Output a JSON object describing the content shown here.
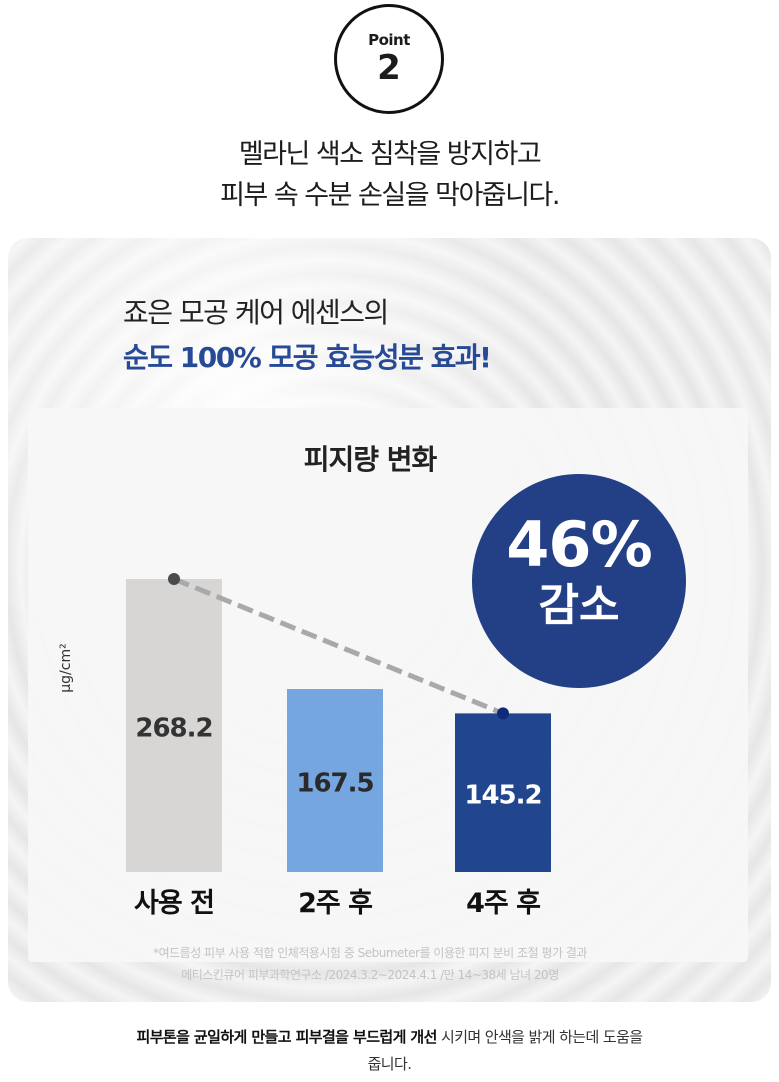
{
  "point": {
    "label": "Point",
    "number": "2"
  },
  "headline": {
    "line1": "멜라닌 색소 침착을 방지하고",
    "line2": "피부 속 수분 손실을 막아줍니다."
  },
  "panel": {
    "subtitle": "죠은 모공 케어 에센스의",
    "highlight": "순도 100% 모공 효능성분 효과!"
  },
  "badge": {
    "percent": "46%",
    "label": "감소",
    "color": "#233f86"
  },
  "chart_data": {
    "type": "bar",
    "title": "피지량 변화",
    "ylabel": "μg/cm²",
    "categories": [
      "사용 전",
      "2주 후",
      "4주 후"
    ],
    "values": [
      268.2,
      167.5,
      145.2
    ],
    "value_labels": [
      "268.2",
      "167.5",
      "145.2"
    ],
    "bar_colors": [
      "#d8d6d4",
      "#76a6e0",
      "#22468e"
    ],
    "label_colors": [
      "#333333",
      "#2a2a2a",
      "#ffffff"
    ],
    "trend_markers": [
      0,
      2
    ],
    "ylim": [
      0,
      300
    ],
    "grid": false
  },
  "footnote": {
    "line1": "*여드름성 피부 사용 적합 인체적용시험 중 Sebumeter를 이용한 피지 분비 조절 평가 결과",
    "line2": "메티스킨큐어 피부과학연구소 /2024.3.2~2024.4.1 /만 14~38세 남녀 20명"
  },
  "bottom": {
    "bold1": "피부톤을 균일하게 만들고 피부결을 부드럽게 개선",
    "rest1": " 시키며 안색을 밝게 하는데 도움을",
    "line2": "줍니다."
  }
}
